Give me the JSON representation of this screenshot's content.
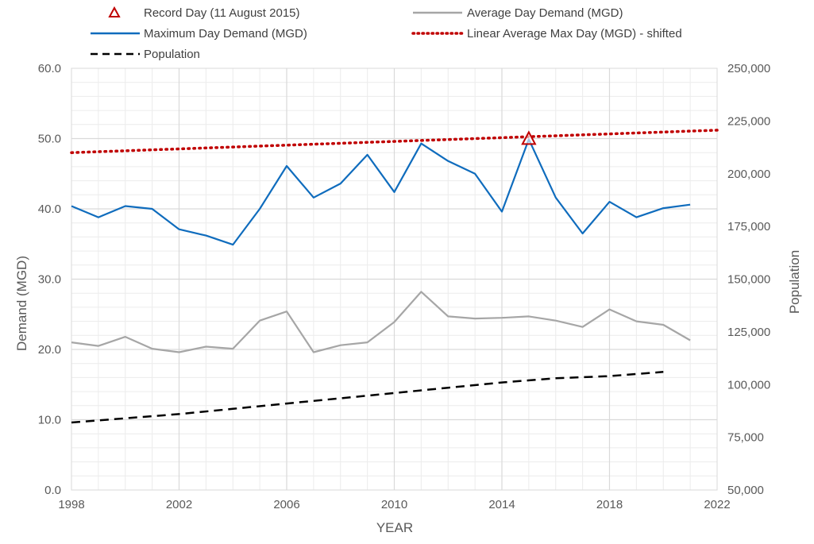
{
  "chart_data": {
    "type": "line",
    "xlabel": "YEAR",
    "ylabel": "Demand (MGD)",
    "y2label": "Population",
    "xlim": [
      1998,
      2022
    ],
    "ylim": [
      0,
      60
    ],
    "y2lim": [
      50000,
      250000
    ],
    "x_ticks": [
      "1998",
      "2002",
      "2006",
      "2010",
      "2014",
      "2018",
      "2022"
    ],
    "y_ticks": [
      "0.0",
      "10.0",
      "20.0",
      "30.0",
      "40.0",
      "50.0",
      "60.0"
    ],
    "y2_ticks": [
      "50,000",
      "75,000",
      "100,000",
      "125,000",
      "150,000",
      "175,000",
      "200,000",
      "225,000",
      "250,000"
    ],
    "grid": true,
    "legend_position": "top",
    "legend": {
      "record": "Record Day (11 August 2015)",
      "avg": "Average Day Demand (MGD)",
      "max": "Maximum Day Demand (MGD)",
      "trend": "Linear Average Max Day (MGD) - shifted",
      "pop": "Population"
    },
    "series": [
      {
        "name": "Maximum Day Demand (MGD)",
        "axis": "left",
        "color": "#0f6cbd",
        "x": [
          1998,
          1999,
          2000,
          2001,
          2002,
          2003,
          2004,
          2005,
          2006,
          2007,
          2008,
          2009,
          2010,
          2011,
          2012,
          2013,
          2014,
          2015,
          2016,
          2017,
          2018,
          2019,
          2020,
          2021
        ],
        "values": [
          40.4,
          38.8,
          40.4,
          40.0,
          37.1,
          36.2,
          34.9,
          40.0,
          46.1,
          41.6,
          43.6,
          47.7,
          42.4,
          49.3,
          46.8,
          45.0,
          39.6,
          49.9,
          41.6,
          36.5,
          41.0,
          38.8,
          40.1,
          40.6
        ]
      },
      {
        "name": "Average Day Demand (MGD)",
        "axis": "left",
        "color": "#a6a6a6",
        "x": [
          1998,
          1999,
          2000,
          2001,
          2002,
          2003,
          2004,
          2005,
          2006,
          2007,
          2008,
          2009,
          2010,
          2011,
          2012,
          2013,
          2014,
          2015,
          2016,
          2017,
          2018,
          2019,
          2020,
          2021
        ],
        "values": [
          21.0,
          20.5,
          21.8,
          20.1,
          19.6,
          20.4,
          20.1,
          24.1,
          25.4,
          19.6,
          20.6,
          21.0,
          23.9,
          28.2,
          24.7,
          24.4,
          24.5,
          24.7,
          24.1,
          23.2,
          25.7,
          24.0,
          23.5,
          21.3
        ]
      },
      {
        "name": "Linear Average Max Day (MGD) - shifted",
        "axis": "left",
        "color": "#c00000",
        "x": [
          1998,
          2022
        ],
        "values": [
          48.0,
          51.2
        ]
      },
      {
        "name": "Population",
        "axis": "right",
        "color": "#000000",
        "x": [
          1998,
          2000,
          2002,
          2004,
          2006,
          2008,
          2010,
          2012,
          2014,
          2016,
          2018,
          2020
        ],
        "values": [
          82000,
          84000,
          86000,
          88500,
          91000,
          93500,
          96000,
          98500,
          101000,
          103000,
          104000,
          106000
        ]
      }
    ],
    "record": {
      "x": 2015,
      "y": 49.9,
      "color": "#c00000"
    }
  }
}
